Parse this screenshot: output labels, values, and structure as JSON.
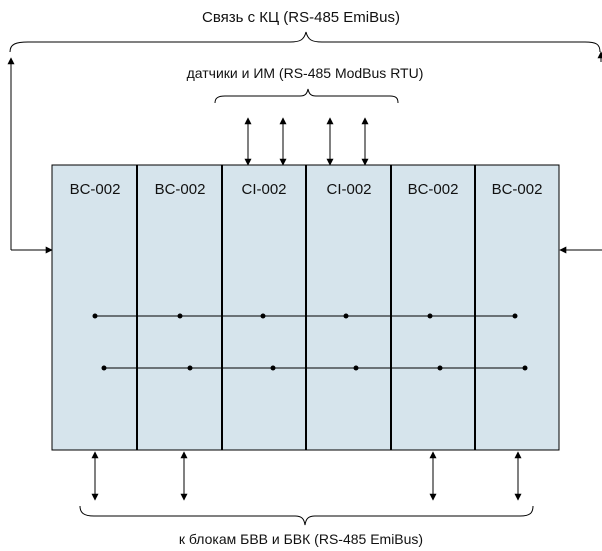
{
  "labels": {
    "top": "Связь с КЦ  (RS-485 EmiBus)",
    "middle": "датчики и ИМ  (RS-485 ModBus RTU)",
    "bottom": "к блокам БВВ и БВК  (RS-485 EmiBus)"
  },
  "modules": [
    {
      "name": "BC-002"
    },
    {
      "name": "BC-002"
    },
    {
      "name": "CI-002"
    },
    {
      "name": "CI-002"
    },
    {
      "name": "BC-002"
    },
    {
      "name": "BC-002"
    }
  ],
  "colors": {
    "module_fill": "#d6e4ec",
    "line": "#000000"
  }
}
